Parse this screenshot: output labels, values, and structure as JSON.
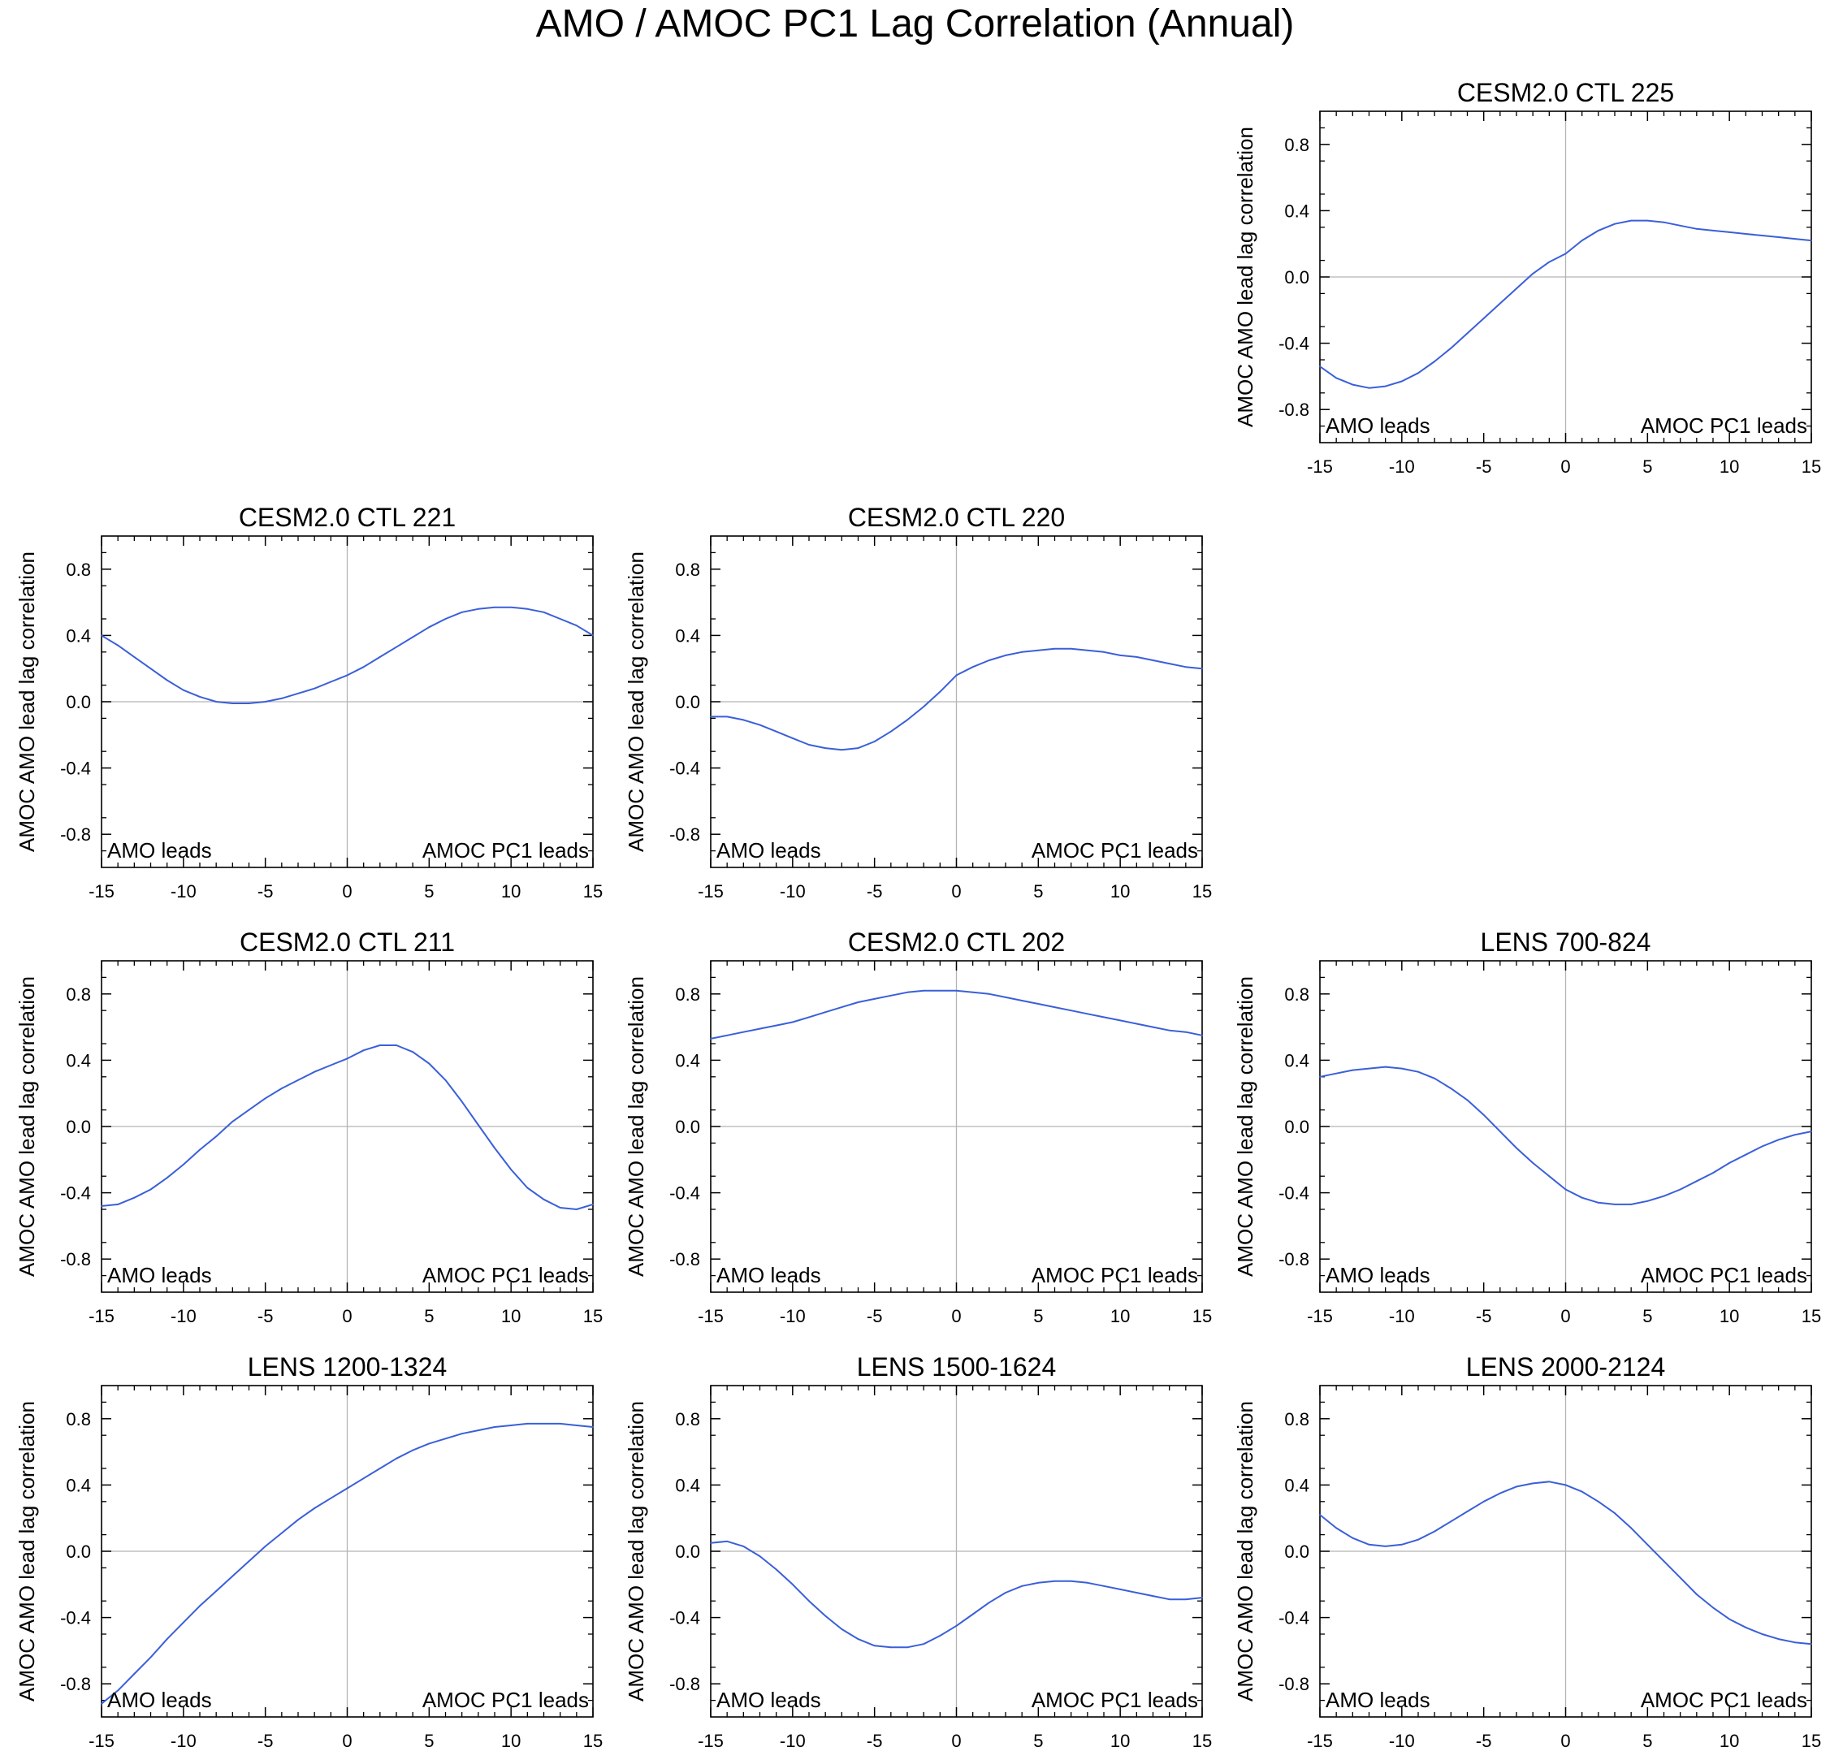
{
  "figure_title": "AMO / AMOC PC1 Lag Correlation (Annual)",
  "colors": {
    "line": "#3a5fd9",
    "frame": "#000000",
    "zero_line": "#b4b4b4"
  },
  "chart_data": [
    {
      "type": "line",
      "slot": 2,
      "title": "CESM2.0 CTL 225",
      "ylabel": "AMOC AMO lead lag correlation",
      "left_note": "AMO leads",
      "right_note": "AMOC PC1 leads",
      "xlim": [
        -15,
        15
      ],
      "ylim": [
        -1,
        1
      ],
      "xticks": [
        -15,
        -10,
        -5,
        0,
        5,
        10,
        15
      ],
      "yticks": [
        0.8,
        0.4,
        0.0,
        -0.4,
        -0.8
      ],
      "ytick_labels": [
        "0.8",
        "0.4",
        "0.0",
        "-0.4",
        "-0.8"
      ],
      "x": [
        -15,
        -14,
        -13,
        -12,
        -11,
        -10,
        -9,
        -8,
        -7,
        -6,
        -5,
        -4,
        -3,
        -2,
        -1,
        0,
        1,
        2,
        3,
        4,
        5,
        6,
        7,
        8,
        9,
        10,
        11,
        12,
        13,
        14,
        15
      ],
      "y": [
        -0.54,
        -0.61,
        -0.65,
        -0.67,
        -0.66,
        -0.63,
        -0.58,
        -0.51,
        -0.43,
        -0.34,
        -0.25,
        -0.16,
        -0.07,
        0.02,
        0.09,
        0.14,
        0.22,
        0.28,
        0.32,
        0.34,
        0.34,
        0.33,
        0.31,
        0.29,
        0.28,
        0.27,
        0.26,
        0.25,
        0.24,
        0.23,
        0.22
      ]
    },
    {
      "type": "line",
      "slot": 3,
      "title": "CESM2.0 CTL 221",
      "ylabel": "AMOC AMO lead lag correlation",
      "left_note": "AMO leads",
      "right_note": "AMOC PC1 leads",
      "xlim": [
        -15,
        15
      ],
      "ylim": [
        -1,
        1
      ],
      "xticks": [
        -15,
        -10,
        -5,
        0,
        5,
        10,
        15
      ],
      "yticks": [
        0.8,
        0.4,
        0.0,
        -0.4,
        -0.8
      ],
      "ytick_labels": [
        "0.8",
        "0.4",
        "0.0",
        "-0.4",
        "-0.8"
      ],
      "x": [
        -15,
        -14,
        -13,
        -12,
        -11,
        -10,
        -9,
        -8,
        -7,
        -6,
        -5,
        -4,
        -3,
        -2,
        -1,
        0,
        1,
        2,
        3,
        4,
        5,
        6,
        7,
        8,
        9,
        10,
        11,
        12,
        13,
        14,
        15
      ],
      "y": [
        0.4,
        0.34,
        0.27,
        0.2,
        0.13,
        0.07,
        0.03,
        0.0,
        -0.01,
        -0.01,
        0.0,
        0.02,
        0.05,
        0.08,
        0.12,
        0.16,
        0.21,
        0.27,
        0.33,
        0.39,
        0.45,
        0.5,
        0.54,
        0.56,
        0.57,
        0.57,
        0.56,
        0.54,
        0.5,
        0.46,
        0.4
      ]
    },
    {
      "type": "line",
      "slot": 4,
      "title": "CESM2.0 CTL 220",
      "ylabel": "AMOC AMO lead lag correlation",
      "left_note": "AMO leads",
      "right_note": "AMOC PC1 leads",
      "xlim": [
        -15,
        15
      ],
      "ylim": [
        -1,
        1
      ],
      "xticks": [
        -15,
        -10,
        -5,
        0,
        5,
        10,
        15
      ],
      "yticks": [
        0.8,
        0.4,
        0.0,
        -0.4,
        -0.8
      ],
      "ytick_labels": [
        "0.8",
        "0.4",
        "0.0",
        "-0.4",
        "-0.8"
      ],
      "x": [
        -15,
        -14,
        -13,
        -12,
        -11,
        -10,
        -9,
        -8,
        -7,
        -6,
        -5,
        -4,
        -3,
        -2,
        -1,
        0,
        1,
        2,
        3,
        4,
        5,
        6,
        7,
        8,
        9,
        10,
        11,
        12,
        13,
        14,
        15
      ],
      "y": [
        -0.09,
        -0.09,
        -0.11,
        -0.14,
        -0.18,
        -0.22,
        -0.26,
        -0.28,
        -0.29,
        -0.28,
        -0.24,
        -0.18,
        -0.11,
        -0.03,
        0.06,
        0.16,
        0.21,
        0.25,
        0.28,
        0.3,
        0.31,
        0.32,
        0.32,
        0.31,
        0.3,
        0.28,
        0.27,
        0.25,
        0.23,
        0.21,
        0.2
      ]
    },
    {
      "type": "line",
      "slot": 6,
      "title": "CESM2.0 CTL 211",
      "ylabel": "AMOC AMO lead lag correlation",
      "left_note": "AMO leads",
      "right_note": "AMOC PC1 leads",
      "xlim": [
        -15,
        15
      ],
      "ylim": [
        -1,
        1
      ],
      "xticks": [
        -15,
        -10,
        -5,
        0,
        5,
        10,
        15
      ],
      "yticks": [
        0.8,
        0.4,
        0.0,
        -0.4,
        -0.8
      ],
      "ytick_labels": [
        "0.8",
        "0.4",
        "0.0",
        "-0.4",
        "-0.8"
      ],
      "x": [
        -15,
        -14,
        -13,
        -12,
        -11,
        -10,
        -9,
        -8,
        -7,
        -6,
        -5,
        -4,
        -3,
        -2,
        -1,
        0,
        1,
        2,
        3,
        4,
        5,
        6,
        7,
        8,
        9,
        10,
        11,
        12,
        13,
        14,
        15
      ],
      "y": [
        -0.48,
        -0.47,
        -0.43,
        -0.38,
        -0.31,
        -0.23,
        -0.14,
        -0.06,
        0.03,
        0.1,
        0.17,
        0.23,
        0.28,
        0.33,
        0.37,
        0.41,
        0.46,
        0.49,
        0.49,
        0.45,
        0.38,
        0.28,
        0.15,
        0.01,
        -0.13,
        -0.26,
        -0.37,
        -0.44,
        -0.49,
        -0.5,
        -0.47
      ]
    },
    {
      "type": "line",
      "slot": 7,
      "title": "CESM2.0 CTL 202",
      "ylabel": "AMOC AMO lead lag correlation",
      "left_note": "AMO leads",
      "right_note": "AMOC PC1 leads",
      "xlim": [
        -15,
        15
      ],
      "ylim": [
        -1,
        1
      ],
      "xticks": [
        -15,
        -10,
        -5,
        0,
        5,
        10,
        15
      ],
      "yticks": [
        0.8,
        0.4,
        0.0,
        -0.4,
        -0.8
      ],
      "ytick_labels": [
        "0.8",
        "0.4",
        "0.0",
        "-0.4",
        "-0.8"
      ],
      "x": [
        -15,
        -14,
        -13,
        -12,
        -11,
        -10,
        -9,
        -8,
        -7,
        -6,
        -5,
        -4,
        -3,
        -2,
        -1,
        0,
        1,
        2,
        3,
        4,
        5,
        6,
        7,
        8,
        9,
        10,
        11,
        12,
        13,
        14,
        15
      ],
      "y": [
        0.53,
        0.55,
        0.57,
        0.59,
        0.61,
        0.63,
        0.66,
        0.69,
        0.72,
        0.75,
        0.77,
        0.79,
        0.81,
        0.82,
        0.82,
        0.82,
        0.81,
        0.8,
        0.78,
        0.76,
        0.74,
        0.72,
        0.7,
        0.68,
        0.66,
        0.64,
        0.62,
        0.6,
        0.58,
        0.57,
        0.55
      ]
    },
    {
      "type": "line",
      "slot": 8,
      "title": "LENS 700-824",
      "ylabel": "AMOC AMO lead lag correlation",
      "left_note": "AMO leads",
      "right_note": "AMOC PC1 leads",
      "xlim": [
        -15,
        15
      ],
      "ylim": [
        -1,
        1
      ],
      "xticks": [
        -15,
        -10,
        -5,
        0,
        5,
        10,
        15
      ],
      "yticks": [
        0.8,
        0.4,
        0.0,
        -0.4,
        -0.8
      ],
      "ytick_labels": [
        "0.8",
        "0.4",
        "0.0",
        "-0.4",
        "-0.8"
      ],
      "x": [
        -15,
        -14,
        -13,
        -12,
        -11,
        -10,
        -9,
        -8,
        -7,
        -6,
        -5,
        -4,
        -3,
        -2,
        -1,
        0,
        1,
        2,
        3,
        4,
        5,
        6,
        7,
        8,
        9,
        10,
        11,
        12,
        13,
        14,
        15
      ],
      "y": [
        0.3,
        0.32,
        0.34,
        0.35,
        0.36,
        0.35,
        0.33,
        0.29,
        0.23,
        0.16,
        0.07,
        -0.03,
        -0.13,
        -0.22,
        -0.3,
        -0.38,
        -0.43,
        -0.46,
        -0.47,
        -0.47,
        -0.45,
        -0.42,
        -0.38,
        -0.33,
        -0.28,
        -0.22,
        -0.17,
        -0.12,
        -0.08,
        -0.05,
        -0.03
      ]
    },
    {
      "type": "line",
      "slot": 9,
      "title": "LENS 1200-1324",
      "ylabel": "AMOC AMO lead lag correlation",
      "left_note": "AMO leads",
      "right_note": "AMOC PC1 leads",
      "xlim": [
        -15,
        15
      ],
      "ylim": [
        -1,
        1
      ],
      "xticks": [
        -15,
        -10,
        -5,
        0,
        5,
        10,
        15
      ],
      "yticks": [
        0.8,
        0.4,
        0.0,
        -0.4,
        -0.8
      ],
      "ytick_labels": [
        "0.8",
        "0.4",
        "0.0",
        "-0.4",
        "-0.8"
      ],
      "x": [
        -15,
        -14,
        -13,
        -12,
        -11,
        -10,
        -9,
        -8,
        -7,
        -6,
        -5,
        -4,
        -3,
        -2,
        -1,
        0,
        1,
        2,
        3,
        4,
        5,
        6,
        7,
        8,
        9,
        10,
        11,
        12,
        13,
        14,
        15
      ],
      "y": [
        -0.92,
        -0.84,
        -0.74,
        -0.64,
        -0.53,
        -0.43,
        -0.33,
        -0.24,
        -0.15,
        -0.06,
        0.03,
        0.11,
        0.19,
        0.26,
        0.32,
        0.38,
        0.44,
        0.5,
        0.56,
        0.61,
        0.65,
        0.68,
        0.71,
        0.73,
        0.75,
        0.76,
        0.77,
        0.77,
        0.77,
        0.76,
        0.75
      ]
    },
    {
      "type": "line",
      "slot": 10,
      "title": "LENS 1500-1624",
      "ylabel": "AMOC AMO lead lag correlation",
      "left_note": "AMO leads",
      "right_note": "AMOC PC1 leads",
      "xlim": [
        -15,
        15
      ],
      "ylim": [
        -1,
        1
      ],
      "xticks": [
        -15,
        -10,
        -5,
        0,
        5,
        10,
        15
      ],
      "yticks": [
        0.8,
        0.4,
        0.0,
        -0.4,
        -0.8
      ],
      "ytick_labels": [
        "0.8",
        "0.4",
        "0.0",
        "-0.4",
        "-0.8"
      ],
      "x": [
        -15,
        -14,
        -13,
        -12,
        -11,
        -10,
        -9,
        -8,
        -7,
        -6,
        -5,
        -4,
        -3,
        -2,
        -1,
        0,
        1,
        2,
        3,
        4,
        5,
        6,
        7,
        8,
        9,
        10,
        11,
        12,
        13,
        14,
        15
      ],
      "y": [
        0.05,
        0.06,
        0.03,
        -0.03,
        -0.11,
        -0.2,
        -0.3,
        -0.39,
        -0.47,
        -0.53,
        -0.57,
        -0.58,
        -0.58,
        -0.56,
        -0.51,
        -0.45,
        -0.38,
        -0.31,
        -0.25,
        -0.21,
        -0.19,
        -0.18,
        -0.18,
        -0.19,
        -0.21,
        -0.23,
        -0.25,
        -0.27,
        -0.29,
        -0.29,
        -0.28
      ]
    },
    {
      "type": "line",
      "slot": 11,
      "title": "LENS 2000-2124",
      "ylabel": "AMOC AMO lead lag correlation",
      "left_note": "AMO leads",
      "right_note": "AMOC PC1 leads",
      "xlim": [
        -15,
        15
      ],
      "ylim": [
        -1,
        1
      ],
      "xticks": [
        -15,
        -10,
        -5,
        0,
        5,
        10,
        15
      ],
      "yticks": [
        0.8,
        0.4,
        0.0,
        -0.4,
        -0.8
      ],
      "ytick_labels": [
        "0.8",
        "0.4",
        "0.0",
        "-0.4",
        "-0.8"
      ],
      "x": [
        -15,
        -14,
        -13,
        -12,
        -11,
        -10,
        -9,
        -8,
        -7,
        -6,
        -5,
        -4,
        -3,
        -2,
        -1,
        0,
        1,
        2,
        3,
        4,
        5,
        6,
        7,
        8,
        9,
        10,
        11,
        12,
        13,
        14,
        15
      ],
      "y": [
        0.22,
        0.14,
        0.08,
        0.04,
        0.03,
        0.04,
        0.07,
        0.12,
        0.18,
        0.24,
        0.3,
        0.35,
        0.39,
        0.41,
        0.42,
        0.4,
        0.36,
        0.3,
        0.23,
        0.14,
        0.04,
        -0.06,
        -0.16,
        -0.26,
        -0.34,
        -0.41,
        -0.46,
        -0.5,
        -0.53,
        -0.55,
        -0.56
      ]
    }
  ]
}
